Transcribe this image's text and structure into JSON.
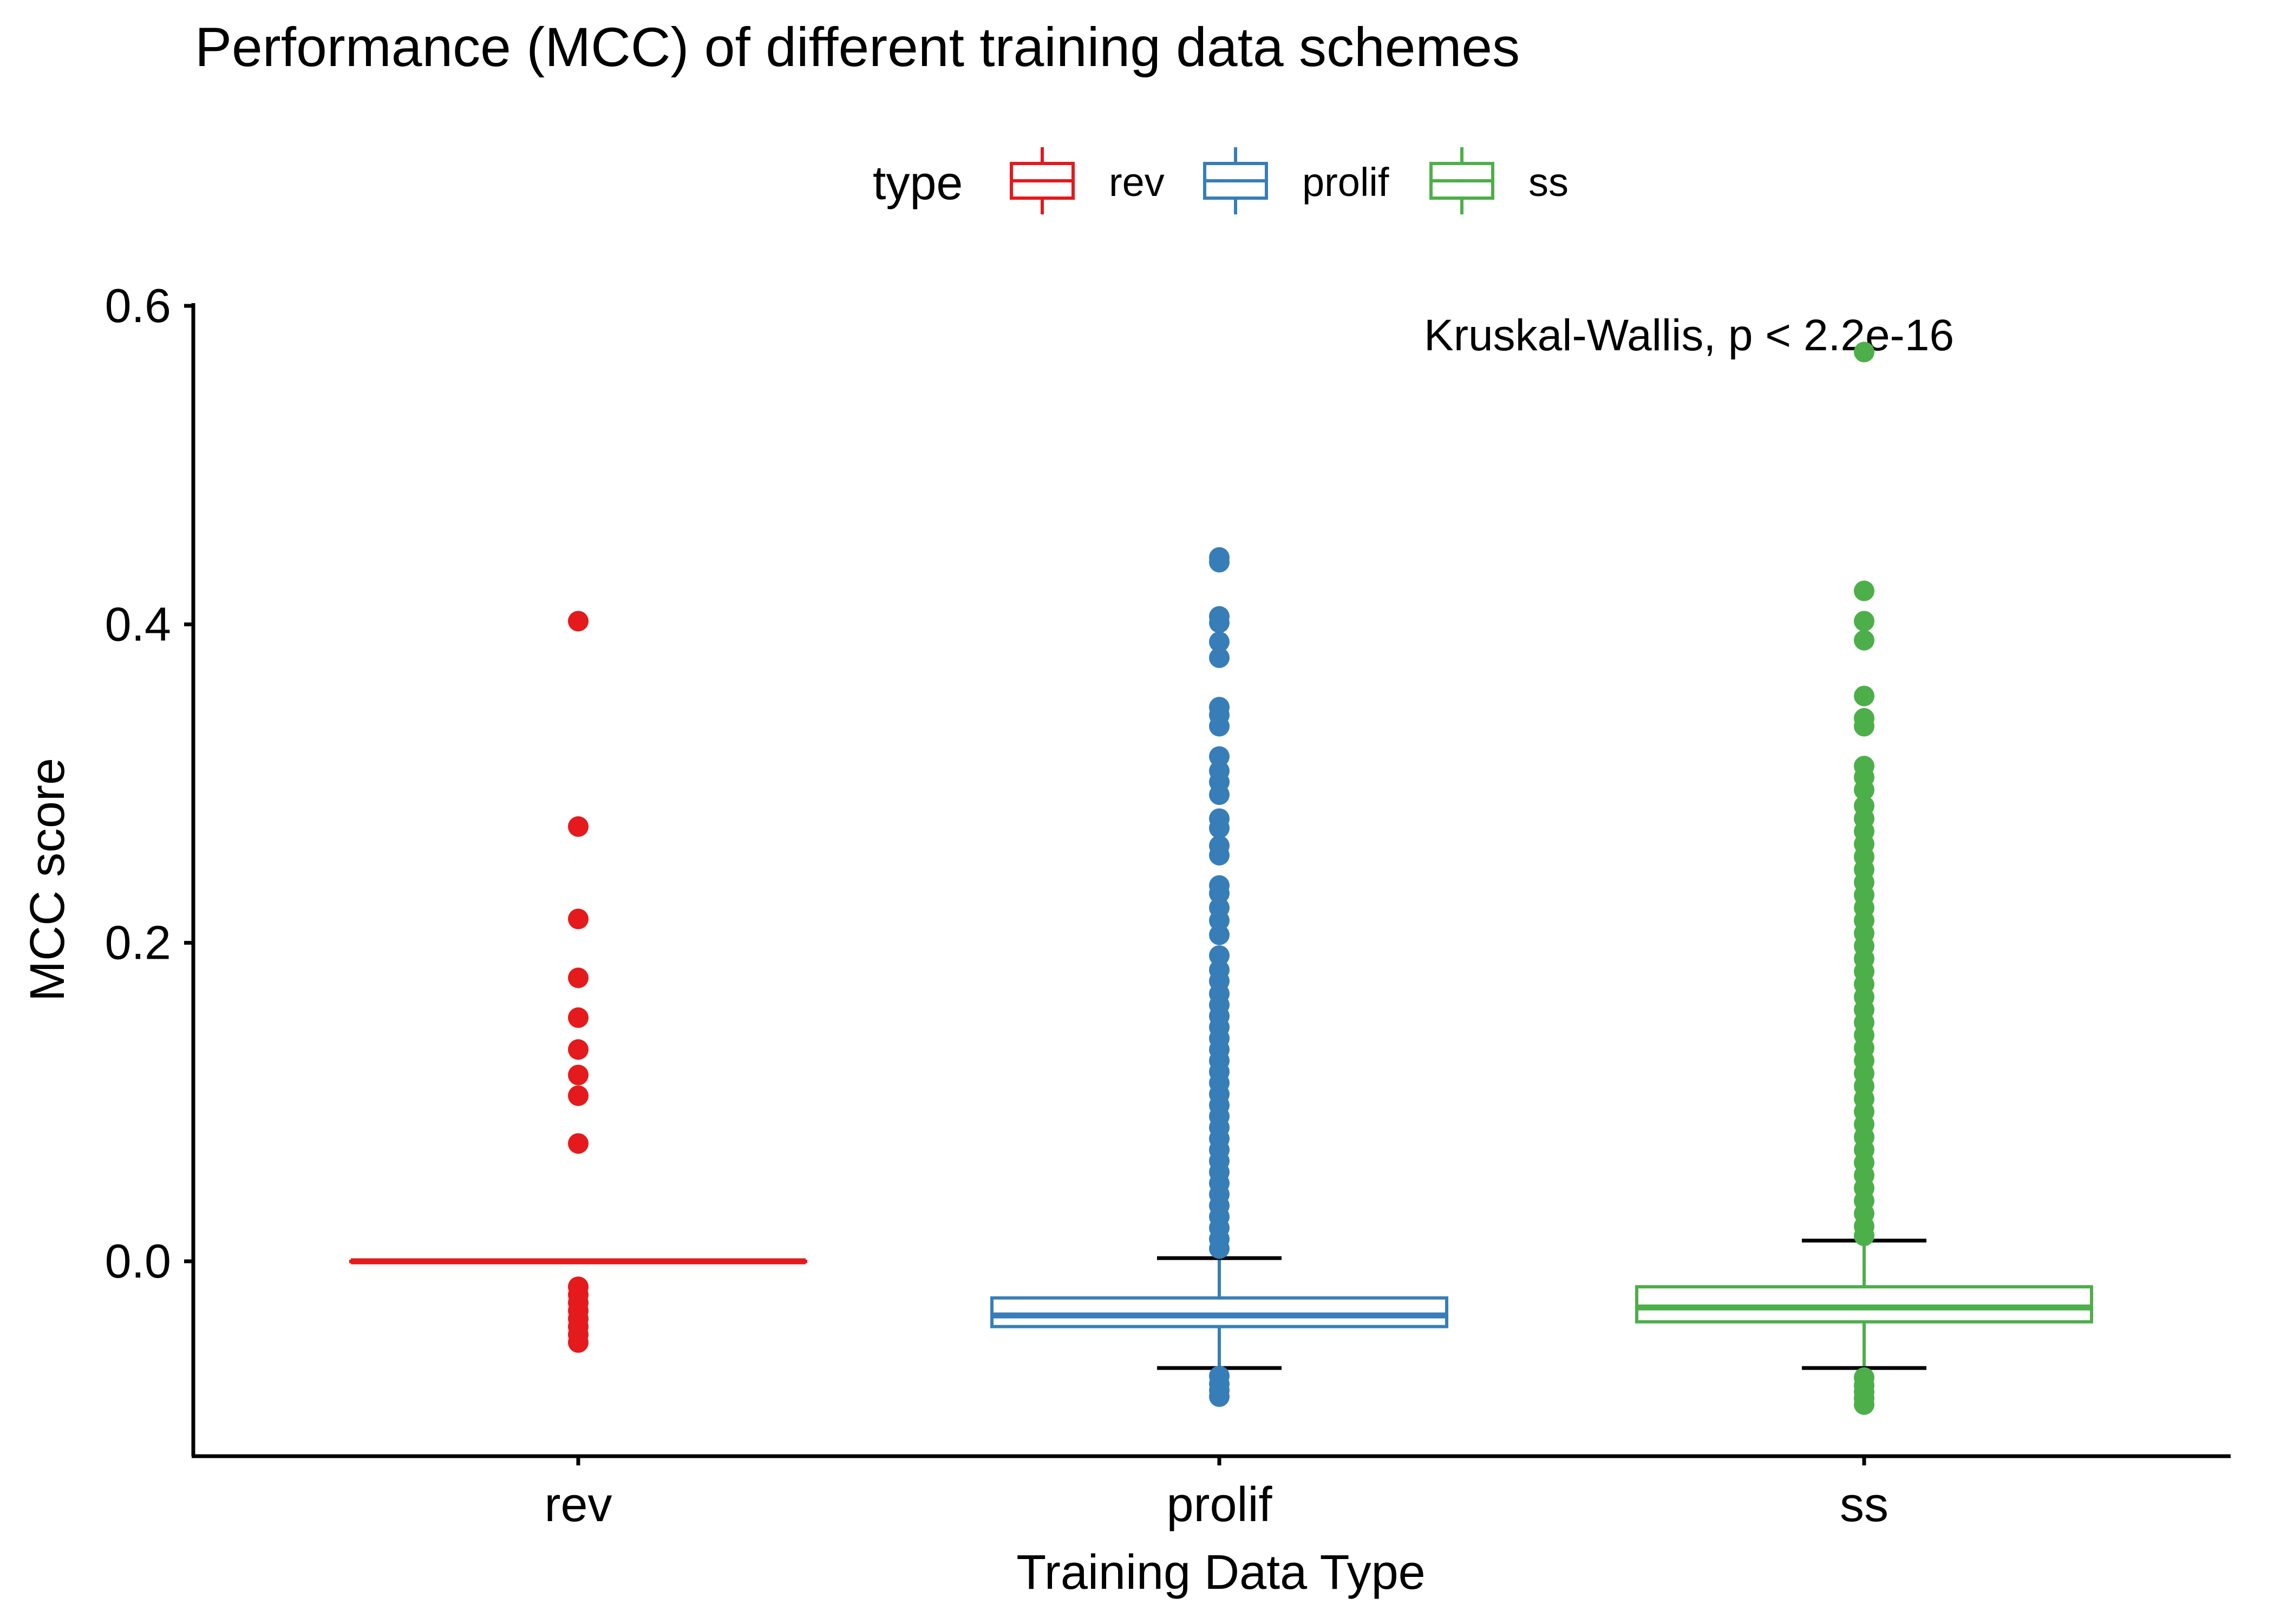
{
  "chart_data": {
    "type": "box",
    "title": "Performance (MCC) of different training data schemes",
    "xlabel": "Training Data Type",
    "ylabel": "MCC score",
    "ylim": [
      -0.125,
      0.605
    ],
    "yticks": [
      0.0,
      0.2,
      0.4,
      0.6
    ],
    "ytick_labels": [
      "0.0",
      "0.2",
      "0.4",
      "0.6"
    ],
    "categories": [
      "rev",
      "prolif",
      "ss"
    ],
    "legend": {
      "title": "type",
      "placement": "top",
      "entries": [
        "rev",
        "prolif",
        "ss"
      ]
    },
    "annotation": "Kruskal-Wallis, p < 2.2e-16",
    "grid": false,
    "series": [
      {
        "category": "rev",
        "color": "#E41A1C",
        "whisker_low": 0.0,
        "q1": 0.0,
        "median": 0.0,
        "q3": 0.0,
        "whisker_high": 0.0,
        "outliers": [
          0.402,
          0.273,
          0.215,
          0.178,
          0.153,
          0.133,
          0.117,
          0.104,
          0.074,
          -0.016,
          -0.021,
          -0.026,
          -0.031,
          -0.036,
          -0.041,
          -0.046,
          -0.051
        ]
      },
      {
        "category": "prolif",
        "color": "#377EB8",
        "whisker_low": -0.067,
        "q1": -0.041,
        "median": -0.034,
        "q3": -0.023,
        "whisker_high": 0.002,
        "outliers": [
          0.442,
          0.439,
          0.405,
          0.401,
          0.389,
          0.379,
          0.348,
          0.343,
          0.336,
          0.317,
          0.308,
          0.301,
          0.293,
          0.278,
          0.272,
          0.261,
          0.255,
          0.236,
          0.231,
          0.222,
          0.214,
          0.205,
          0.192,
          0.183,
          0.176,
          0.168,
          0.161,
          0.154,
          0.147,
          0.14,
          0.133,
          0.126,
          0.119,
          0.112,
          0.105,
          0.098,
          0.091,
          0.084,
          0.077,
          0.07,
          0.063,
          0.056,
          0.049,
          0.042,
          0.035,
          0.028,
          0.021,
          0.014,
          0.008,
          -0.072,
          -0.077,
          -0.081,
          -0.085
        ]
      },
      {
        "category": "ss",
        "color": "#4DAF4A",
        "whisker_low": -0.067,
        "q1": -0.038,
        "median": -0.029,
        "q3": -0.016,
        "whisker_high": 0.013,
        "outliers": [
          0.571,
          0.421,
          0.402,
          0.39,
          0.355,
          0.341,
          0.336,
          0.311,
          0.304,
          0.296,
          0.286,
          0.278,
          0.27,
          0.262,
          0.254,
          0.246,
          0.238,
          0.23,
          0.222,
          0.214,
          0.206,
          0.198,
          0.19,
          0.182,
          0.174,
          0.166,
          0.158,
          0.15,
          0.142,
          0.134,
          0.126,
          0.118,
          0.11,
          0.102,
          0.094,
          0.086,
          0.078,
          0.07,
          0.062,
          0.054,
          0.046,
          0.038,
          0.03,
          0.022,
          0.016,
          -0.073,
          -0.078,
          -0.082,
          -0.086,
          -0.09
        ]
      }
    ]
  }
}
